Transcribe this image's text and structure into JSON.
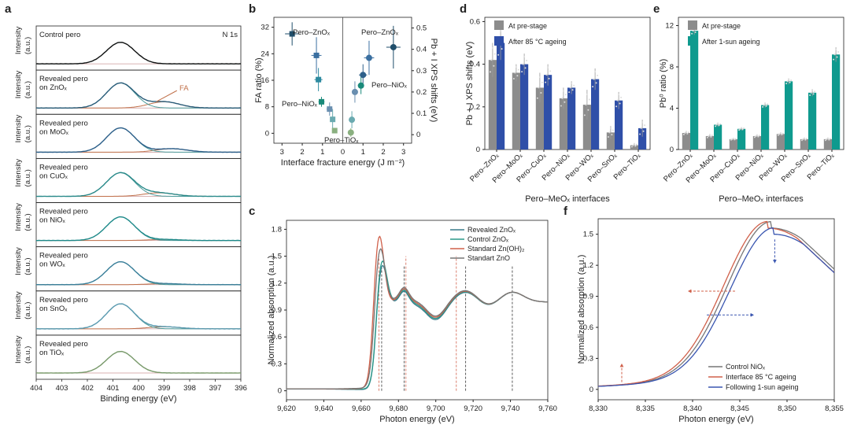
{
  "chart_data": [
    {
      "panel": "a",
      "type": "line",
      "xlabel": "Binding energy (eV)",
      "ylabel": "Intensity (a.u.)",
      "xlim": [
        404,
        396
      ],
      "x_ticks": [
        "404",
        "403",
        "402",
        "401",
        "400",
        "399",
        "398",
        "397",
        "396"
      ],
      "corner_label": "N 1s",
      "annotation": "FA",
      "subpanels": [
        {
          "label": [
            "Control pero"
          ],
          "peak_x": 400.7,
          "peak_rel": 0.62,
          "shoulder_x": 399.0,
          "shoulder_rel": 0.0,
          "color": "#111111"
        },
        {
          "label": [
            "Revealed pero",
            "on ZnOₓ"
          ],
          "peak_x": 400.7,
          "peak_rel": 0.72,
          "shoulder_x": 399.0,
          "shoulder_rel": 0.18,
          "color": "#2a5d7a"
        },
        {
          "label": [
            "Revealed pero",
            "on MoOₓ"
          ],
          "peak_x": 400.7,
          "peak_rel": 0.7,
          "shoulder_x": 398.7,
          "shoulder_rel": 0.1,
          "color": "#2d5f8a"
        },
        {
          "label": [
            "Revealed pero",
            "on CuOₓ"
          ],
          "peak_x": 400.7,
          "peak_rel": 0.68,
          "shoulder_x": 399.2,
          "shoulder_rel": 0.1,
          "color": "#2a8a8a"
        },
        {
          "label": [
            "Revealed pero",
            "on NiOₓ"
          ],
          "peak_x": 400.7,
          "peak_rel": 0.68,
          "shoulder_x": 399.0,
          "shoulder_rel": 0.03,
          "color": "#1f8a8a"
        },
        {
          "label": [
            "Revealed pero",
            "on WOₓ"
          ],
          "peak_x": 400.7,
          "peak_rel": 0.66,
          "shoulder_x": 399.0,
          "shoulder_rel": 0.03,
          "color": "#3a7f9a"
        },
        {
          "label": [
            "Revealed pero",
            "on SnOₓ"
          ],
          "peak_x": 400.7,
          "peak_rel": 0.72,
          "shoulder_x": 399.0,
          "shoulder_rel": 0.06,
          "color": "#5a9ab0"
        },
        {
          "label": [
            "Revealed pero",
            "on TiOₓ"
          ],
          "peak_x": 400.7,
          "peak_rel": 0.62,
          "shoulder_x": 399.0,
          "shoulder_rel": 0.0,
          "color": "#7a9a6a"
        }
      ]
    },
    {
      "panel": "b",
      "type": "scatter",
      "xlabel": "Interface fracture energy (J m⁻²)",
      "ylabel_left": "FA ratio (%)",
      "ylabel_right": "Pb + I XPS shifts (eV)",
      "x_ticks": [
        "3",
        "2",
        "1",
        "0",
        "1",
        "2",
        "3"
      ],
      "y_left_ticks": [
        "0",
        "8",
        "16",
        "24",
        "32"
      ],
      "y_right_ticks": [
        "0",
        "0.1",
        "0.2",
        "0.3",
        "0.4",
        "0.5"
      ],
      "left_points": [
        {
          "x": 2.5,
          "y": 30,
          "xerr": 0.35,
          "yerr": 3.5,
          "color": "#1f4e6b",
          "label": "Pero–ZnOₓ"
        },
        {
          "x": 1.3,
          "y": 23.5,
          "xerr": 0.25,
          "yerr": 5.5,
          "color": "#3a6fa0"
        },
        {
          "x": 1.2,
          "y": 16.2,
          "xerr": 0.2,
          "yerr": 3.5,
          "color": "#2d8aa0"
        },
        {
          "x": 1.05,
          "y": 9.5,
          "xerr": 0.15,
          "yerr": 1.5,
          "color": "#1a8a7a",
          "label": "Pero–NiOₓ"
        },
        {
          "x": 0.65,
          "y": 7.3,
          "xerr": 0.15,
          "yerr": 2.0,
          "color": "#6a8fb0"
        },
        {
          "x": 0.5,
          "y": 4.2,
          "xerr": 0.12,
          "yerr": 3.0,
          "color": "#6aaab0"
        },
        {
          "x": 0.4,
          "y": 0.8,
          "xerr": 0.1,
          "yerr": 0.6,
          "color": "#8ab080",
          "label": "Pero–TiOₓ"
        }
      ],
      "right_points": [
        {
          "x": 2.5,
          "y": 0.41,
          "xerr": 0.35,
          "yerr": 0.1,
          "color": "#1f4e6b",
          "label": "Pero–ZnOₓ"
        },
        {
          "x": 1.3,
          "y": 0.36,
          "xerr": 0.25,
          "yerr": 0.08,
          "color": "#3a6fa0"
        },
        {
          "x": 1.0,
          "y": 0.28,
          "xerr": 0.2,
          "yerr": 0.05,
          "color": "#2d5f8a"
        },
        {
          "x": 0.9,
          "y": 0.23,
          "xerr": 0.15,
          "yerr": 0.04,
          "color": "#1a8a7a",
          "label": "Pero–NiOₓ"
        },
        {
          "x": 0.6,
          "y": 0.2,
          "xerr": 0.15,
          "yerr": 0.05,
          "color": "#6a8fb0"
        },
        {
          "x": 0.45,
          "y": 0.07,
          "xerr": 0.12,
          "yerr": 0.04,
          "color": "#6aaab0"
        },
        {
          "x": 0.4,
          "y": 0.01,
          "xerr": 0.1,
          "yerr": 0.02,
          "color": "#8ab080"
        }
      ]
    },
    {
      "panel": "c",
      "type": "line",
      "xlabel": "Photon energy (eV)",
      "ylabel": "Normalized absorption (a.u.)",
      "xlim": [
        9620,
        9760
      ],
      "ylim": [
        -0.1,
        1.9
      ],
      "x_ticks": [
        "9,620",
        "9,640",
        "9,660",
        "9,680",
        "9,700",
        "9,720",
        "9,740",
        "9,760"
      ],
      "x_tick_values": [
        9620,
        9640,
        9660,
        9680,
        9700,
        9720,
        9740,
        9760
      ],
      "y_ticks": [
        "0",
        "0.3",
        "0.6",
        "0.9",
        "1.2",
        "1.5",
        "1.8"
      ],
      "series": [
        {
          "name": "Revealed ZnOₓ",
          "color": "#3a7a8a",
          "peak": 1.48,
          "peak_x": 9671
        },
        {
          "name": "Control ZnOₓ",
          "color": "#2a9a8a",
          "peak": 1.52,
          "peak_x": 9671
        },
        {
          "name": "Standard Zn(OH)₂",
          "color": "#d0604a",
          "peak": 1.79,
          "peak_x": 9669.5
        },
        {
          "name": "Standart ZnO",
          "color": "#777777",
          "peak": 1.64,
          "peak_x": 9670
        }
      ],
      "dashed_black": [
        9671,
        9683,
        9716,
        9741
      ],
      "dashed_red": [
        9669.5,
        9684,
        9711
      ]
    },
    {
      "panel": "d",
      "type": "bar",
      "xlabel": "Pero–MeOₓ interfaces",
      "ylabel": "Pb + I XPS shifts (eV)",
      "ylim": [
        0,
        0.62
      ],
      "y_ticks": [
        "0",
        "0.2",
        "0.4",
        "0.6"
      ],
      "y_tick_values": [
        0,
        0.2,
        0.4,
        0.6
      ],
      "categories": [
        "Pero–ZnOₓ",
        "Pero–MoOₓ",
        "Pero–CuOₓ",
        "Pero–NiOₓ",
        "Pero–WOₓ",
        "Pero–SnOₓ",
        "Pero–TiOₓ"
      ],
      "series": [
        {
          "name": "At pre-stage",
          "color": "#8c8c8c",
          "values": [
            0.42,
            0.36,
            0.29,
            0.24,
            0.21,
            0.08,
            0.02
          ],
          "errors": [
            0.08,
            0.04,
            0.07,
            0.05,
            0.07,
            0.03,
            0.01
          ]
        },
        {
          "name": "After 85 °C ageing",
          "color": "#2f4fa8",
          "values": [
            0.5,
            0.4,
            0.35,
            0.29,
            0.33,
            0.23,
            0.1
          ],
          "errors": [
            0.08,
            0.05,
            0.05,
            0.03,
            0.05,
            0.04,
            0.04
          ]
        }
      ]
    },
    {
      "panel": "e",
      "type": "bar",
      "xlabel": "Pero–MeOₓ interfaces",
      "ylabel": "Pb⁰ ratio (%)",
      "ylim": [
        0,
        12.8
      ],
      "y_ticks": [
        "0",
        "4",
        "8",
        "12"
      ],
      "y_tick_values": [
        0,
        4,
        8,
        12
      ],
      "categories": [
        "Pero–ZnOₓ",
        "Pero–MoOₓ",
        "Pero–CuOₓ",
        "Pero–NiOₓ",
        "Pero–WOₓ",
        "Pero–SnOₓ",
        "Pero–TiOₓ"
      ],
      "series": [
        {
          "name": "At pre-stage",
          "color": "#8c8c8c",
          "values": [
            1.6,
            1.3,
            1.0,
            1.3,
            1.5,
            1.0,
            1.0
          ],
          "errors": [
            0.2,
            0.2,
            0.1,
            0.15,
            0.15,
            0.15,
            0.15
          ]
        },
        {
          "name": "After 1-sun ageing",
          "color": "#0f9a8e",
          "values": [
            11.5,
            2.4,
            2.0,
            4.3,
            6.6,
            5.5,
            9.2
          ],
          "errors": [
            0.4,
            0.2,
            0.15,
            0.25,
            0.3,
            0.35,
            0.7
          ]
        }
      ]
    },
    {
      "panel": "f",
      "type": "line",
      "xlabel": "Photon energy (eV)",
      "ylabel": "Normalized absorption (a.u.)",
      "xlim": [
        8330,
        8355
      ],
      "ylim": [
        -0.1,
        1.65
      ],
      "x_ticks": [
        "8,330",
        "8,335",
        "8,340",
        "8,345",
        "8,350",
        "8,355"
      ],
      "x_tick_values": [
        8330,
        8335,
        8340,
        8345,
        8350,
        8355
      ],
      "y_ticks": [
        "0",
        "0.3",
        "0.6",
        "0.9",
        "1.2",
        "1.5"
      ],
      "y_tick_values": [
        0,
        0.3,
        0.6,
        0.9,
        1.2,
        1.5
      ],
      "series": [
        {
          "name": "Control NiOₓ",
          "color": "#777777",
          "shift": 0.0,
          "peak": 1.56
        },
        {
          "name": "Interface 85 °C ageing",
          "color": "#d0604a",
          "shift": -0.4,
          "peak": 1.56
        },
        {
          "name": "Following 1-sun ageing",
          "color": "#3a56b0",
          "shift": 0.3,
          "peak": 1.5
        }
      ]
    }
  ]
}
